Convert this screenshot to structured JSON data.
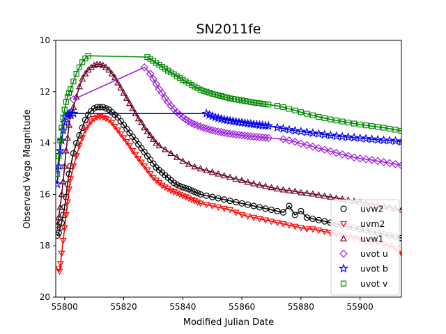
{
  "chart_data": {
    "type": "line",
    "title": "SN2011fe",
    "xlabel": "Modified Julian Date",
    "ylabel": "Observed Vega Magnitude",
    "xlim": [
      55797,
      55914
    ],
    "ylim": [
      20,
      10
    ],
    "y_inverted": true,
    "xticks": [
      55800,
      55820,
      55840,
      55860,
      55880,
      55900
    ],
    "yticks": [
      10,
      12,
      14,
      16,
      18,
      20
    ],
    "grid": false,
    "legend_position": "lower right",
    "series": [
      {
        "name": "uvw2",
        "color": "#000000",
        "marker": "circle",
        "x": [
          55797.5,
          55798.0,
          55798.5,
          55799.0,
          55799.5,
          55800.0,
          55800.5,
          55801.0,
          55801.5,
          55802.0,
          55803,
          55804,
          55805,
          55806,
          55807,
          55808,
          55809,
          55810,
          55811,
          55812,
          55813,
          55814,
          55815,
          55816,
          55817,
          55818,
          55819,
          55820,
          55821,
          55822,
          55823,
          55824,
          55825,
          55826,
          55827,
          55828,
          55829,
          55830,
          55831,
          55832,
          55833,
          55834,
          55835,
          55836,
          55837,
          55838,
          55839,
          55840,
          55841,
          55842,
          55843,
          55844,
          55845,
          55846,
          55848,
          55850,
          55852,
          55854,
          55856,
          55858,
          55860,
          55862,
          55864,
          55866,
          55868,
          55870,
          55872,
          55874,
          55876,
          55878,
          55880,
          55882,
          55884,
          55886,
          55888,
          55890,
          55892,
          55894,
          55896,
          55898,
          55900,
          55902,
          55904,
          55906,
          55908,
          55910,
          55912,
          55914
        ],
        "y": [
          17.6,
          17.5,
          17.3,
          17.1,
          16.8,
          16.5,
          16.1,
          15.6,
          15.2,
          14.9,
          14.4,
          14.0,
          13.7,
          13.4,
          13.1,
          12.9,
          12.75,
          12.65,
          12.6,
          12.6,
          12.6,
          12.65,
          12.7,
          12.8,
          12.9,
          13.0,
          13.15,
          13.3,
          13.45,
          13.6,
          13.75,
          13.9,
          14.05,
          14.2,
          14.35,
          14.5,
          14.65,
          14.8,
          14.95,
          15.05,
          15.15,
          15.25,
          15.35,
          15.45,
          15.55,
          15.62,
          15.68,
          15.72,
          15.76,
          15.8,
          15.85,
          15.9,
          15.95,
          16.0,
          16.05,
          16.1,
          16.15,
          16.2,
          16.25,
          16.3,
          16.35,
          16.4,
          16.45,
          16.5,
          16.55,
          16.6,
          16.65,
          16.7,
          16.45,
          16.8,
          16.65,
          16.9,
          16.95,
          17.0,
          17.05,
          17.1,
          17.15,
          17.2,
          17.25,
          17.3,
          17.35,
          17.4,
          17.45,
          17.5,
          17.55,
          17.6,
          17.65,
          17.7
        ]
      },
      {
        "name": "uvm2",
        "color": "#ff0000",
        "marker": "triangle_down",
        "x": [
          55798.0,
          55798.3,
          55798.6,
          55799.0,
          55799.5,
          55800.0,
          55800.5,
          55801.0,
          55801.5,
          55802.0,
          55803,
          55804,
          55805,
          55806,
          55807,
          55808,
          55809,
          55810,
          55811,
          55812,
          55813,
          55814,
          55815,
          55816,
          55817,
          55818,
          55819,
          55820,
          55821,
          55822,
          55823,
          55824,
          55825,
          55826,
          55827,
          55828,
          55829,
          55830,
          55831,
          55832,
          55833,
          55834,
          55835,
          55836,
          55837,
          55838,
          55839,
          55840,
          55841,
          55842,
          55843,
          55844,
          55845,
          55846,
          55848,
          55850,
          55852,
          55854,
          55856,
          55858,
          55860,
          55862,
          55864,
          55866,
          55868,
          55870,
          55872,
          55874,
          55876,
          55878,
          55880,
          55882,
          55884,
          55886,
          55888,
          55890,
          55892,
          55894,
          55896,
          55898,
          55900,
          55902,
          55904,
          55906,
          55908,
          55910,
          55912,
          55914
        ],
        "y": [
          18.9,
          19.0,
          18.7,
          18.3,
          17.8,
          17.3,
          16.8,
          16.3,
          15.8,
          15.4,
          14.9,
          14.5,
          14.1,
          13.8,
          13.5,
          13.3,
          13.15,
          13.05,
          13.0,
          12.98,
          13.0,
          13.05,
          13.1,
          13.2,
          13.35,
          13.5,
          13.65,
          13.8,
          13.95,
          14.1,
          14.3,
          14.45,
          14.6,
          14.75,
          14.9,
          15.05,
          15.2,
          15.35,
          15.45,
          15.55,
          15.65,
          15.72,
          15.78,
          15.85,
          15.9,
          15.95,
          16.0,
          16.05,
          16.1,
          16.15,
          16.2,
          16.25,
          16.3,
          16.35,
          16.4,
          16.45,
          16.5,
          16.55,
          16.6,
          16.7,
          16.8,
          16.85,
          16.9,
          16.95,
          17.0,
          17.05,
          17.1,
          17.15,
          17.2,
          17.25,
          17.3,
          17.35,
          17.35,
          17.4,
          17.45,
          17.5,
          17.55,
          17.6,
          17.65,
          17.7,
          17.75,
          17.8,
          17.85,
          17.9,
          17.95,
          18.0,
          18.1,
          18.3
        ]
      },
      {
        "name": "uvw1",
        "color": "#660022",
        "marker": "triangle_up",
        "x": [
          55797.5,
          55798.0,
          55798.5,
          55799.0,
          55799.5,
          55800.0,
          55800.5,
          55801.0,
          55801.5,
          55802.0,
          55803,
          55804,
          55805,
          55806,
          55807,
          55808,
          55809,
          55810,
          55811,
          55812,
          55813,
          55814,
          55815,
          55816,
          55817,
          55818,
          55819,
          55820,
          55821,
          55822,
          55823,
          55824,
          55825,
          55826,
          55827,
          55828,
          55829,
          55830,
          55831,
          55832,
          55834,
          55836,
          55838,
          55840,
          55842,
          55844,
          55846,
          55848,
          55850,
          55852,
          55854,
          55856,
          55858,
          55860,
          55862,
          55864,
          55866,
          55868,
          55870,
          55872,
          55874,
          55876,
          55878,
          55880,
          55882,
          55884,
          55886,
          55888,
          55890,
          55892,
          55894,
          55896,
          55898,
          55900,
          55902,
          55904,
          55906,
          55908,
          55910,
          55912,
          55914
        ],
        "y": [
          17.2,
          16.9,
          16.5,
          16.0,
          15.5,
          14.9,
          14.3,
          13.8,
          13.3,
          12.95,
          12.6,
          12.2,
          11.8,
          11.5,
          11.3,
          11.15,
          11.05,
          10.97,
          10.93,
          10.93,
          10.97,
          11.05,
          11.15,
          11.3,
          11.45,
          11.65,
          11.85,
          12.05,
          12.25,
          12.45,
          12.65,
          12.85,
          13.05,
          13.2,
          13.4,
          13.55,
          13.7,
          13.85,
          14.0,
          14.1,
          14.25,
          14.4,
          14.55,
          14.7,
          14.82,
          14.92,
          15.0,
          15.07,
          15.13,
          15.2,
          15.27,
          15.33,
          15.4,
          15.45,
          15.52,
          15.58,
          15.63,
          15.68,
          15.73,
          15.78,
          15.82,
          15.85,
          15.88,
          15.93,
          15.95,
          15.98,
          16.02,
          16.06,
          16.1,
          16.14,
          16.18,
          16.22,
          16.26,
          16.3,
          16.34,
          16.38,
          16.42,
          16.46,
          16.5,
          16.55,
          16.6
        ]
      },
      {
        "name": "uvot u",
        "color": "#9a22d8",
        "marker": "diamond",
        "x": [
          55803,
          55827,
          55829,
          55830,
          55831,
          55832,
          55833,
          55834,
          55835,
          55836,
          55837,
          55838,
          55839,
          55840,
          55841,
          55842,
          55843,
          55844,
          55845,
          55846,
          55847,
          55848,
          55849,
          55850,
          55851,
          55852,
          55853,
          55854,
          55855,
          55856,
          55857,
          55858,
          55859,
          55860,
          55861,
          55862,
          55863,
          55864,
          55865,
          55866,
          55867,
          55868,
          55869,
          55874,
          55876,
          55878,
          55880,
          55882,
          55884,
          55886,
          55888,
          55890,
          55892,
          55894,
          55896,
          55898,
          55900,
          55902,
          55904,
          55906,
          55908,
          55910,
          55912,
          55914
        ],
        "y": [
          12.3,
          11.05,
          11.3,
          11.5,
          11.7,
          11.9,
          12.05,
          12.25,
          12.4,
          12.55,
          12.68,
          12.8,
          12.9,
          13.0,
          13.08,
          13.15,
          13.22,
          13.28,
          13.32,
          13.36,
          13.4,
          13.44,
          13.47,
          13.5,
          13.53,
          13.55,
          13.57,
          13.6,
          13.62,
          13.64,
          13.65,
          13.67,
          13.68,
          13.7,
          13.71,
          13.73,
          13.74,
          13.75,
          13.76,
          13.77,
          13.78,
          13.79,
          13.8,
          13.85,
          13.9,
          13.95,
          14.02,
          14.08,
          14.14,
          14.2,
          14.26,
          14.32,
          14.38,
          14.44,
          14.5,
          14.56,
          14.6,
          14.63,
          14.66,
          14.7,
          14.74,
          14.78,
          14.82,
          14.87
        ]
      },
      {
        "name": "uvot b",
        "color": "#0000ee",
        "marker": "star",
        "x": [
          55797.5,
          55798.0,
          55798.5,
          55799.0,
          55799.5,
          55800.0,
          55800.5,
          55801.0,
          55801.5,
          55802.0,
          55803,
          55848,
          55849,
          55850,
          55851,
          55852,
          55853,
          55854,
          55855,
          55856,
          55857,
          55858,
          55859,
          55860,
          55861,
          55862,
          55863,
          55864,
          55865,
          55866,
          55867,
          55868,
          55869,
          55872,
          55874,
          55876,
          55878,
          55880,
          55882,
          55884,
          55886,
          55888,
          55890,
          55892,
          55894,
          55896,
          55898,
          55900,
          55902,
          55904,
          55906,
          55908,
          55910,
          55912,
          55914
        ],
        "y": [
          15.6,
          14.9,
          14.3,
          13.9,
          13.5,
          13.2,
          13.0,
          12.9,
          12.85,
          12.85,
          12.85,
          12.85,
          12.9,
          12.95,
          13.0,
          13.03,
          13.06,
          13.09,
          13.11,
          13.13,
          13.15,
          13.17,
          13.19,
          13.2,
          13.22,
          13.24,
          13.25,
          13.27,
          13.28,
          13.3,
          13.31,
          13.32,
          13.33,
          13.4,
          13.44,
          13.48,
          13.52,
          13.55,
          13.58,
          13.61,
          13.64,
          13.67,
          13.7,
          13.73,
          13.75,
          13.77,
          13.79,
          13.81,
          13.83,
          13.85,
          13.87,
          13.89,
          13.9,
          13.92,
          13.95
        ]
      },
      {
        "name": "uvot v",
        "color": "#008800",
        "marker": "square",
        "x": [
          55797.5,
          55798.0,
          55798.5,
          55799.0,
          55799.5,
          55800.0,
          55800.5,
          55801.0,
          55801.5,
          55802.0,
          55803,
          55804,
          55805,
          55806,
          55807,
          55808,
          55828,
          55829,
          55830,
          55831,
          55832,
          55833,
          55834,
          55835,
          55836,
          55837,
          55838,
          55839,
          55840,
          55841,
          55842,
          55843,
          55844,
          55845,
          55846,
          55847,
          55848,
          55849,
          55850,
          55851,
          55852,
          55853,
          55854,
          55855,
          55856,
          55857,
          55858,
          55859,
          55860,
          55861,
          55862,
          55863,
          55864,
          55865,
          55866,
          55867,
          55868,
          55869,
          55872,
          55874,
          55876,
          55878,
          55880,
          55882,
          55884,
          55886,
          55888,
          55890,
          55892,
          55894,
          55896,
          55898,
          55900,
          55902,
          55904,
          55906,
          55908,
          55910,
          55912,
          55914
        ],
        "y": [
          15.2,
          14.5,
          13.9,
          13.4,
          13.0,
          12.7,
          12.4,
          12.2,
          12.05,
          11.9,
          11.6,
          11.3,
          11.05,
          10.85,
          10.7,
          10.6,
          10.65,
          10.72,
          10.8,
          10.88,
          10.95,
          11.03,
          11.1,
          11.18,
          11.25,
          11.32,
          11.4,
          11.47,
          11.54,
          11.6,
          11.67,
          11.74,
          11.8,
          11.86,
          11.92,
          11.97,
          12.0,
          12.04,
          12.08,
          12.11,
          12.14,
          12.17,
          12.2,
          12.23,
          12.26,
          12.28,
          12.3,
          12.32,
          12.34,
          12.36,
          12.38,
          12.4,
          12.42,
          12.44,
          12.45,
          12.47,
          12.49,
          12.5,
          12.55,
          12.6,
          12.67,
          12.73,
          12.8,
          12.86,
          12.92,
          12.98,
          13.03,
          13.08,
          13.12,
          13.16,
          13.2,
          13.24,
          13.28,
          13.31,
          13.34,
          13.37,
          13.4,
          13.44,
          13.48,
          13.52
        ]
      }
    ]
  }
}
